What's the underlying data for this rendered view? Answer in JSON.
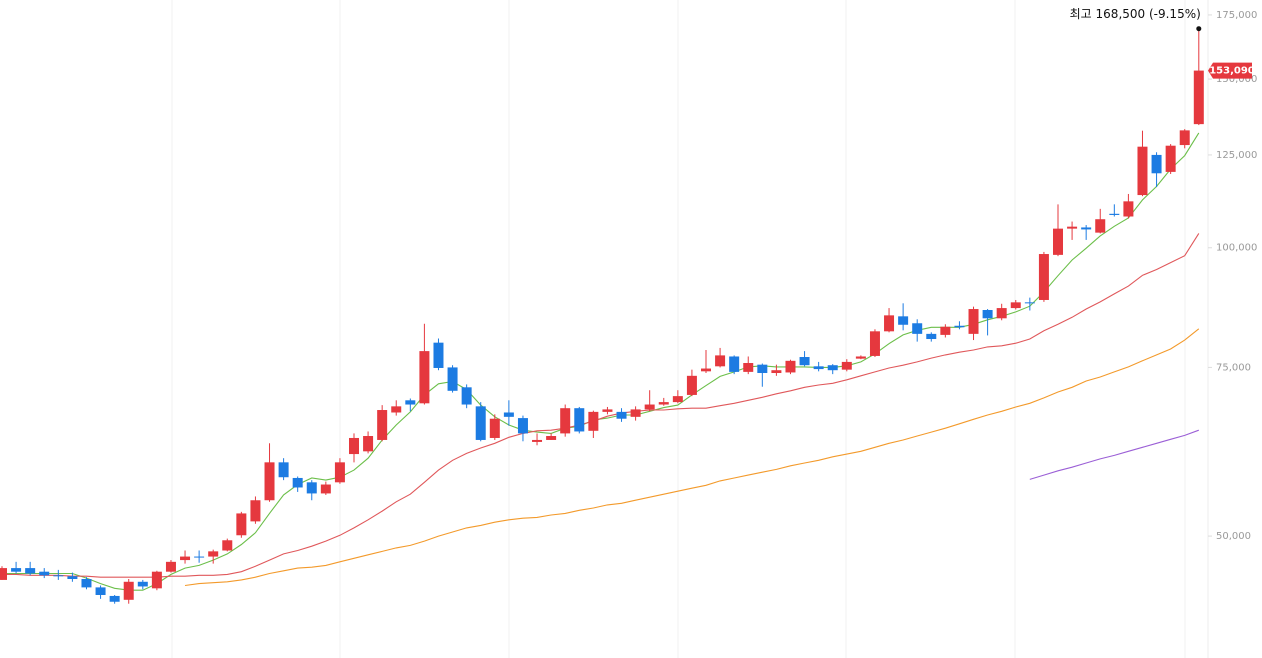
{
  "chart_data": {
    "type": "candlestick",
    "annotation": "최고 168,500 (-9.15%)",
    "close_label": "153,090",
    "log_scale": true,
    "up_color": "#e5383e",
    "down_color": "#1c7be2",
    "ylim": [
      37300,
      181400
    ],
    "yticks": [
      {
        "value": 50000,
        "label": "50,000"
      },
      {
        "value": 75000,
        "label": "75,000"
      },
      {
        "value": 100000,
        "label": "100,000"
      },
      {
        "value": 125000,
        "label": "125,000"
      },
      {
        "value": 150000,
        "label": "150,000"
      },
      {
        "value": 175000,
        "label": "175,000"
      }
    ],
    "open": [
      45000,
      46300,
      46300,
      45900,
      45500,
      45400,
      45100,
      44200,
      43300,
      42900,
      44800,
      44100,
      45900,
      47200,
      47600,
      47600,
      48300,
      50100,
      51800,
      54500,
      59700,
      57500,
      56900,
      55400,
      56900,
      60900,
      61300,
      63000,
      67300,
      69300,
      68800,
      79600,
      75000,
      71500,
      68300,
      63300,
      67300,
      66400,
      62700,
      63000,
      64000,
      68000,
      64400,
      67400,
      67400,
      66600,
      67800,
      68600,
      69000,
      70200,
      74300,
      75200,
      77000,
      74200,
      75500,
      74000,
      74100,
      76900,
      75200,
      75400,
      74600,
      76600,
      77100,
      81800,
      84800,
      83400,
      81300,
      81100,
      82900,
      81300,
      86100,
      84400,
      86500,
      87700,
      88200,
      98300,
      104700,
      105000,
      103700,
      108500,
      107800,
      113500,
      125000,
      120000,
      128000,
      134600
    ],
    "high": [
      46500,
      47000,
      47000,
      46300,
      46100,
      45800,
      45300,
      44400,
      43400,
      45100,
      45000,
      46000,
      47200,
      48300,
      48300,
      48400,
      49700,
      53000,
      55000,
      62500,
      60300,
      57700,
      57200,
      57000,
      60300,
      64000,
      64300,
      68500,
      69300,
      69600,
      83300,
      80400,
      75400,
      72000,
      69000,
      67000,
      69300,
      66800,
      64000,
      64000,
      68600,
      68200,
      67600,
      68200,
      68000,
      68300,
      71000,
      69700,
      71000,
      74600,
      78200,
      78600,
      77200,
      77000,
      75700,
      75500,
      76400,
      78000,
      76000,
      75600,
      76500,
      77200,
      82200,
      86500,
      87500,
      84200,
      81600,
      83200,
      83800,
      86800,
      86300,
      87400,
      88200,
      88700,
      99000,
      111000,
      106500,
      105600,
      109800,
      111000,
      113800,
      132500,
      125800,
      128300,
      133000,
      168500
    ],
    "low": [
      45000,
      45700,
      45500,
      45200,
      45000,
      44800,
      44000,
      43000,
      42500,
      42500,
      44000,
      43900,
      45800,
      46800,
      46900,
      46800,
      48200,
      49800,
      51500,
      54300,
      57200,
      55600,
      54500,
      55200,
      56700,
      59700,
      61000,
      62800,
      66800,
      67500,
      68600,
      74500,
      70600,
      68000,
      62800,
      63000,
      65200,
      62800,
      62200,
      63000,
      63500,
      64000,
      63300,
      67000,
      65800,
      66000,
      67500,
      68400,
      68800,
      70000,
      74000,
      75000,
      73800,
      73800,
      71600,
      73500,
      73800,
      75200,
      74300,
      73800,
      74300,
      76500,
      76900,
      81600,
      82000,
      79800,
      79800,
      80600,
      82200,
      80100,
      81000,
      84000,
      86200,
      86000,
      87800,
      98000,
      101900,
      101900,
      103500,
      107800,
      107300,
      113200,
      115700,
      119400,
      127000,
      134300
    ],
    "close": [
      46300,
      45900,
      45700,
      45500,
      45400,
      45100,
      44200,
      43400,
      42700,
      44800,
      44300,
      45900,
      47000,
      47600,
      47500,
      48200,
      49500,
      52800,
      54500,
      59700,
      57600,
      56200,
      55400,
      56600,
      59700,
      63300,
      63600,
      67700,
      68300,
      68600,
      78000,
      74900,
      70900,
      68600,
      63000,
      66300,
      66600,
      64000,
      63000,
      63600,
      68000,
      64300,
      67400,
      67800,
      66300,
      67800,
      68600,
      69000,
      70000,
      73500,
      74800,
      77200,
      74200,
      75800,
      74000,
      74500,
      76200,
      75400,
      74700,
      74500,
      76000,
      77000,
      81800,
      85000,
      83100,
      81300,
      80300,
      82700,
      82600,
      86300,
      84400,
      86500,
      87700,
      87500,
      98500,
      104700,
      105200,
      104500,
      107100,
      108200,
      111800,
      127500,
      119600,
      127800,
      132600,
      153090
    ],
    "series": [
      {
        "color": "#6cbf4a",
        "values": [
          45700,
          45700,
          45700,
          45700,
          45700,
          45700,
          45200,
          44600,
          44100,
          43900,
          43900,
          44600,
          45600,
          46300,
          46600,
          47200,
          47900,
          49000,
          50400,
          52800,
          55200,
          56600,
          57500,
          57200,
          57600,
          58600,
          60300,
          63000,
          65300,
          67400,
          70200,
          72100,
          72500,
          71100,
          68500,
          66600,
          65300,
          64500,
          64200,
          64000,
          64800,
          65100,
          66100,
          66400,
          66900,
          66900,
          67500,
          68100,
          68500,
          70200,
          71800,
          73400,
          74200,
          75100,
          75300,
          75100,
          75100,
          75100,
          75000,
          75000,
          75300,
          76000,
          77500,
          79400,
          81100,
          82000,
          82600,
          82600,
          82600,
          83200,
          84100,
          84800,
          85700,
          86900,
          89900,
          93500,
          97100,
          99900,
          102900,
          105300,
          107400,
          112200,
          115900,
          120800,
          124800,
          131800
        ]
      },
      {
        "color": "#e0585b",
        "values": [
          45600,
          45600,
          45500,
          45500,
          45500,
          45400,
          45400,
          45300,
          45300,
          45300,
          45300,
          45300,
          45400,
          45400,
          45500,
          45500,
          45600,
          45900,
          46500,
          47200,
          47900,
          48300,
          48800,
          49400,
          50100,
          51000,
          52000,
          53100,
          54300,
          55300,
          56900,
          58600,
          60000,
          61000,
          61800,
          62500,
          63400,
          64000,
          64400,
          64500,
          64800,
          65300,
          65900,
          66700,
          67200,
          67500,
          67700,
          67700,
          67900,
          68000,
          68000,
          68400,
          68800,
          69300,
          69800,
          70400,
          70900,
          71500,
          71900,
          72200,
          72800,
          73500,
          74200,
          74900,
          75400,
          76000,
          76700,
          77300,
          77800,
          78200,
          78800,
          79000,
          79500,
          80300,
          81900,
          83200,
          84600,
          86300,
          87800,
          89500,
          91200,
          93600,
          94900,
          96500,
          98100,
          103500
        ]
      },
      {
        "color": "#f39a2b",
        "values": [
          null,
          null,
          null,
          null,
          null,
          null,
          null,
          null,
          null,
          null,
          null,
          null,
          null,
          44400,
          44600,
          44700,
          44800,
          45000,
          45300,
          45700,
          46000,
          46300,
          46400,
          46600,
          47000,
          47400,
          47800,
          48200,
          48600,
          48900,
          49400,
          50000,
          50500,
          51000,
          51300,
          51700,
          52000,
          52200,
          52300,
          52600,
          52800,
          53200,
          53500,
          53900,
          54100,
          54500,
          54900,
          55300,
          55700,
          56100,
          56500,
          57100,
          57500,
          57900,
          58300,
          58700,
          59200,
          59600,
          60000,
          60500,
          60900,
          61300,
          61900,
          62500,
          63000,
          63600,
          64200,
          64800,
          65500,
          66200,
          66900,
          67500,
          68200,
          68800,
          69700,
          70700,
          71500,
          72600,
          73300,
          74200,
          75100,
          76200,
          77300,
          78400,
          80100,
          82300
        ]
      },
      {
        "color": "#9b5fd6",
        "values": [
          null,
          null,
          null,
          null,
          null,
          null,
          null,
          null,
          null,
          null,
          null,
          null,
          null,
          null,
          null,
          null,
          null,
          null,
          null,
          null,
          null,
          null,
          null,
          null,
          null,
          null,
          null,
          null,
          null,
          null,
          null,
          null,
          null,
          null,
          null,
          null,
          null,
          null,
          null,
          null,
          null,
          null,
          null,
          null,
          null,
          null,
          null,
          null,
          null,
          null,
          null,
          null,
          null,
          null,
          null,
          null,
          null,
          null,
          null,
          null,
          null,
          null,
          null,
          null,
          null,
          null,
          null,
          null,
          null,
          null,
          null,
          null,
          null,
          57300,
          57900,
          58500,
          59000,
          59600,
          60200,
          60700,
          61300,
          61900,
          62500,
          63100,
          63700,
          64500
        ]
      }
    ]
  }
}
